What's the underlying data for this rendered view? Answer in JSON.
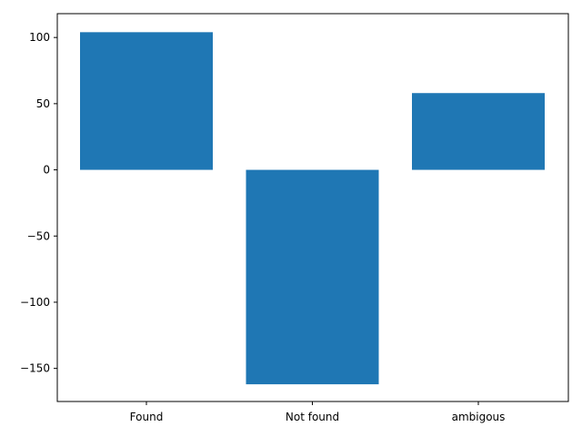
{
  "chart_data": {
    "type": "bar",
    "categories": [
      "Found",
      "Not found",
      "ambigous"
    ],
    "values": [
      104,
      -162,
      58
    ],
    "color": "#1f77b4",
    "title": "",
    "xlabel": "",
    "ylabel": "",
    "ylim": [
      -175,
      118
    ],
    "yticks": [
      100,
      50,
      0,
      -50,
      -100,
      -150
    ],
    "ytick_labels": [
      "100",
      "50",
      "0",
      "−50",
      "−100",
      "−150"
    ],
    "grid": false
  }
}
